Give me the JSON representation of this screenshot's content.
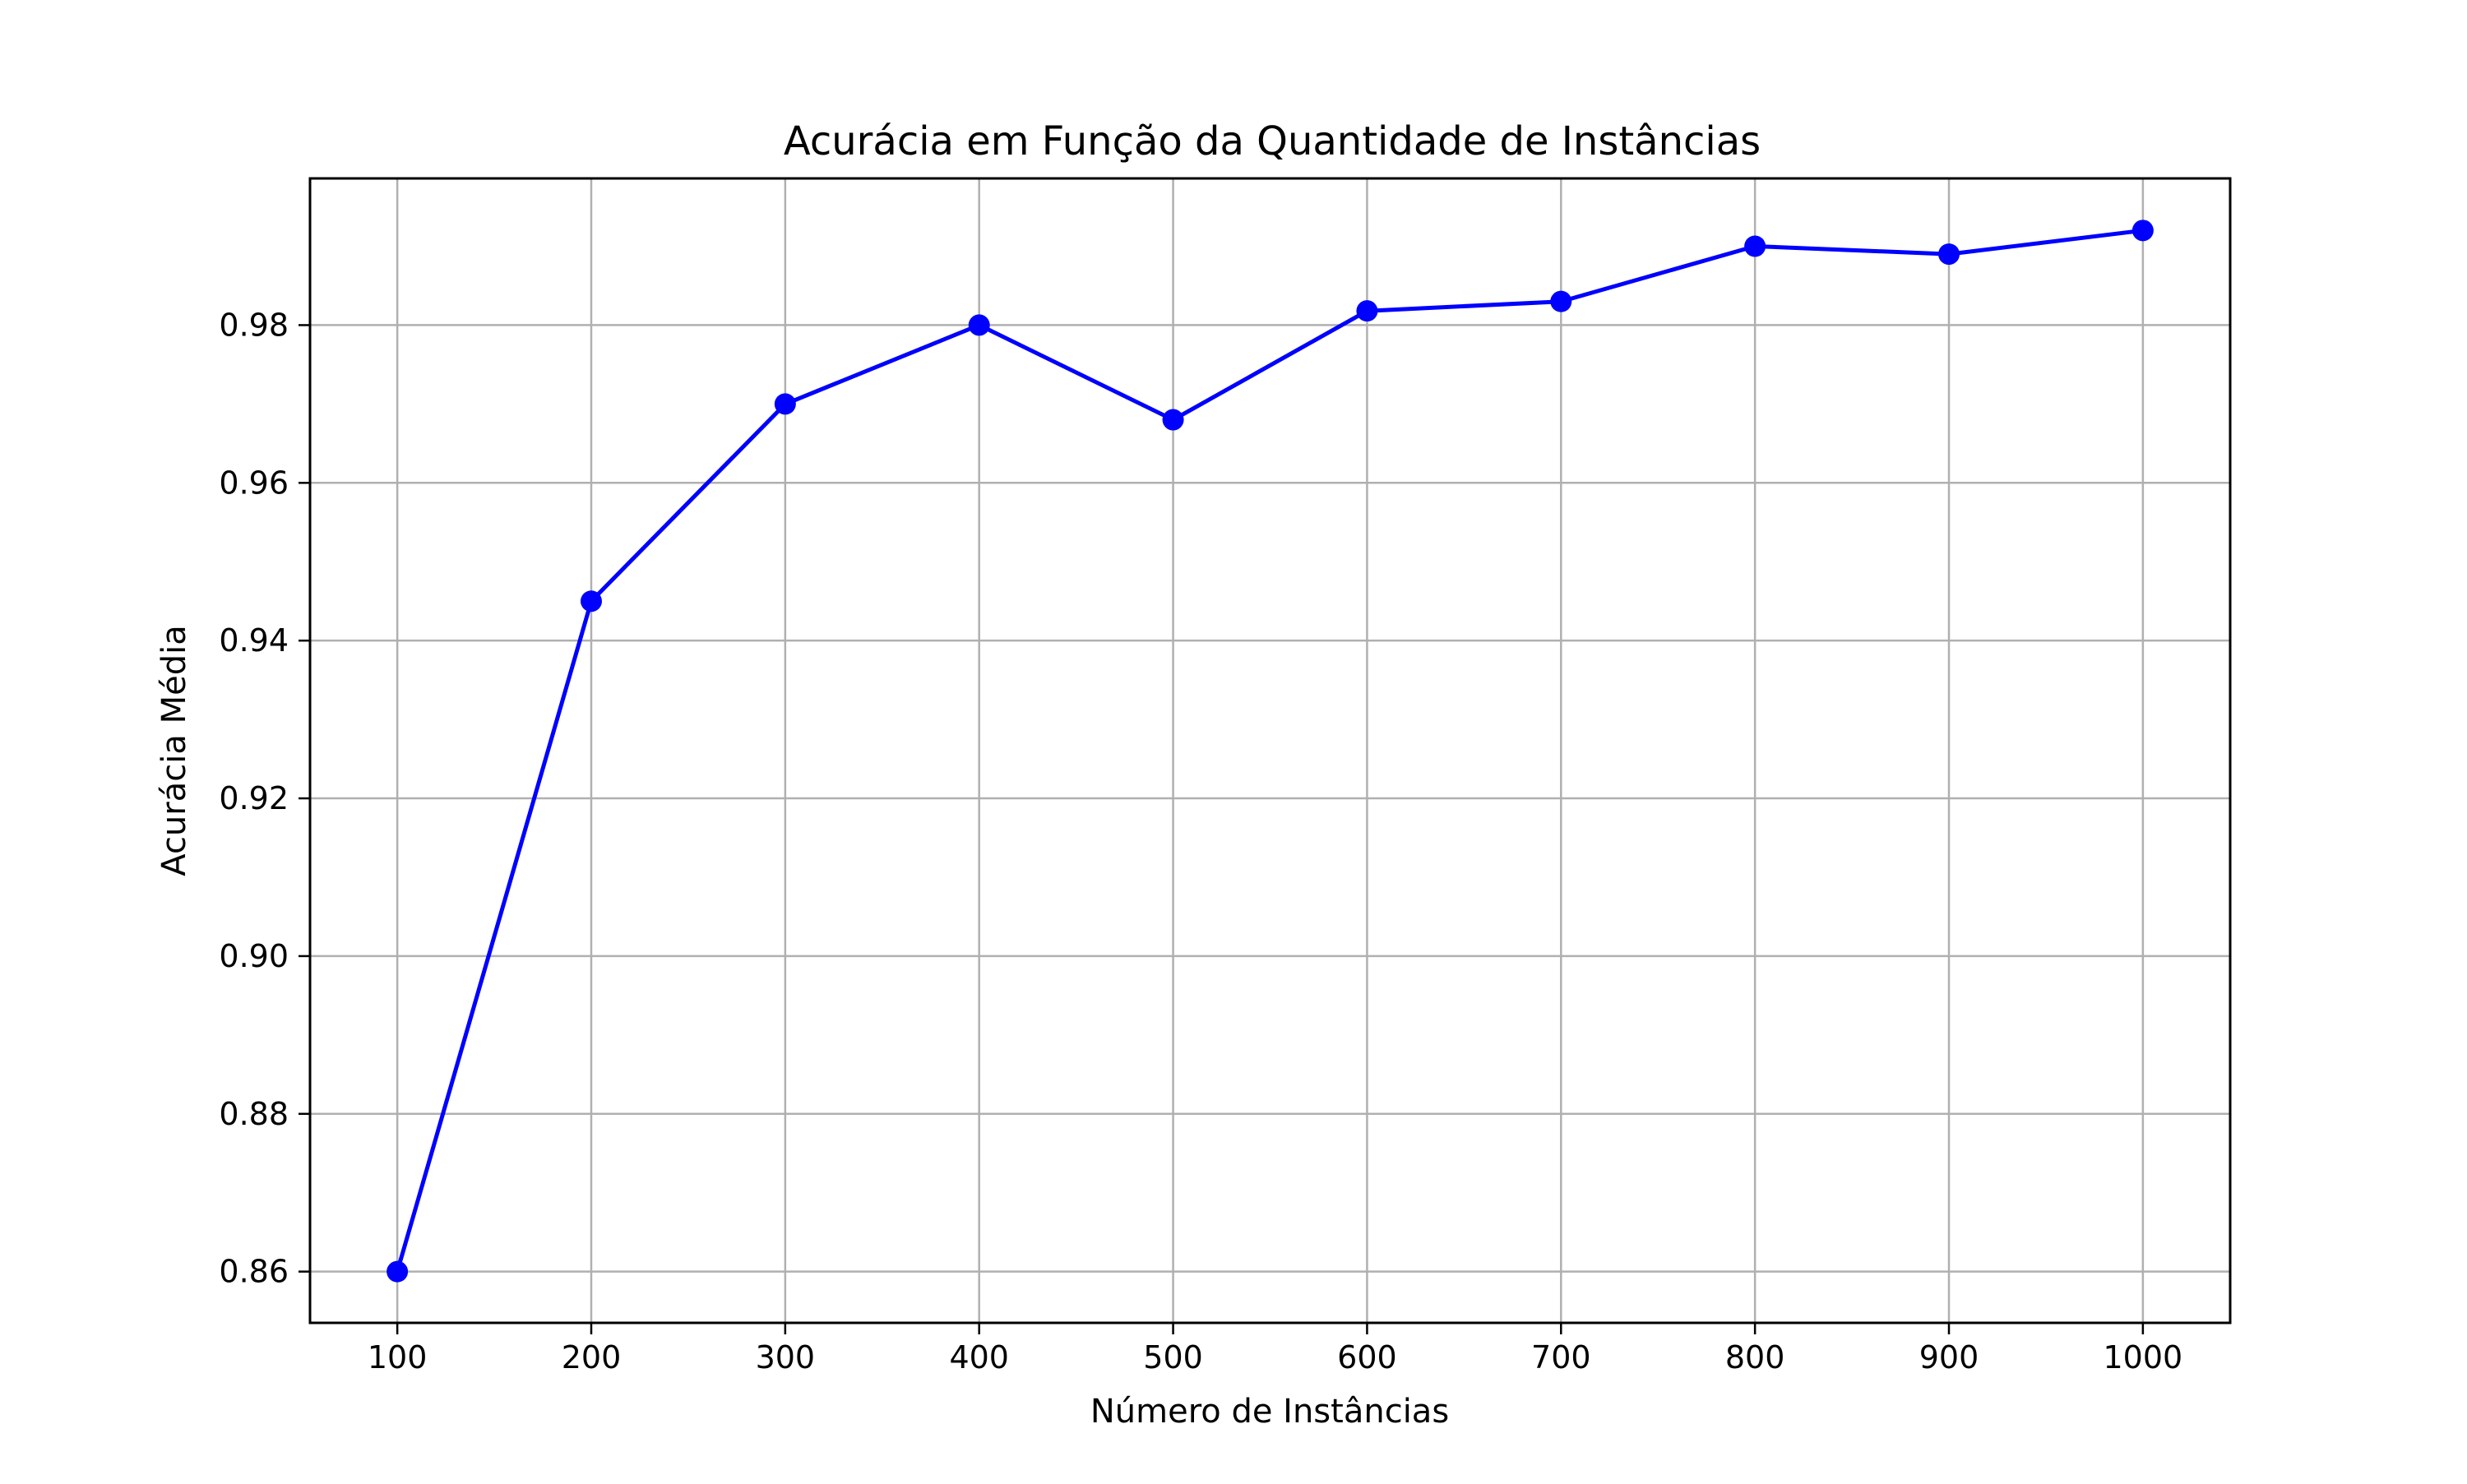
{
  "chart_data": {
    "type": "line",
    "title": "Acurácia em Função da Quantidade de Instâncias",
    "xlabel": "Número de Instâncias",
    "ylabel": "Acurácia Média",
    "x": [
      100,
      200,
      300,
      400,
      500,
      600,
      700,
      800,
      900,
      1000
    ],
    "series": [
      {
        "values": [
          0.86,
          0.945,
          0.97,
          0.98,
          0.968,
          0.9818,
          0.983,
          0.99,
          0.989,
          0.992
        ],
        "color": "#0000ff",
        "marker": "circle"
      }
    ],
    "xticks": [
      "100",
      "200",
      "300",
      "400",
      "500",
      "600",
      "700",
      "800",
      "900",
      "1000"
    ],
    "yticks": [
      "0.86",
      "0.88",
      "0.90",
      "0.92",
      "0.94",
      "0.96",
      "0.98"
    ],
    "xlim": [
      55,
      1045
    ],
    "ylim": [
      0.8535,
      0.9986
    ],
    "grid": true,
    "colors": {
      "grid": "#b0b0b0",
      "axes": "#000000",
      "line": "#0000ff"
    }
  }
}
